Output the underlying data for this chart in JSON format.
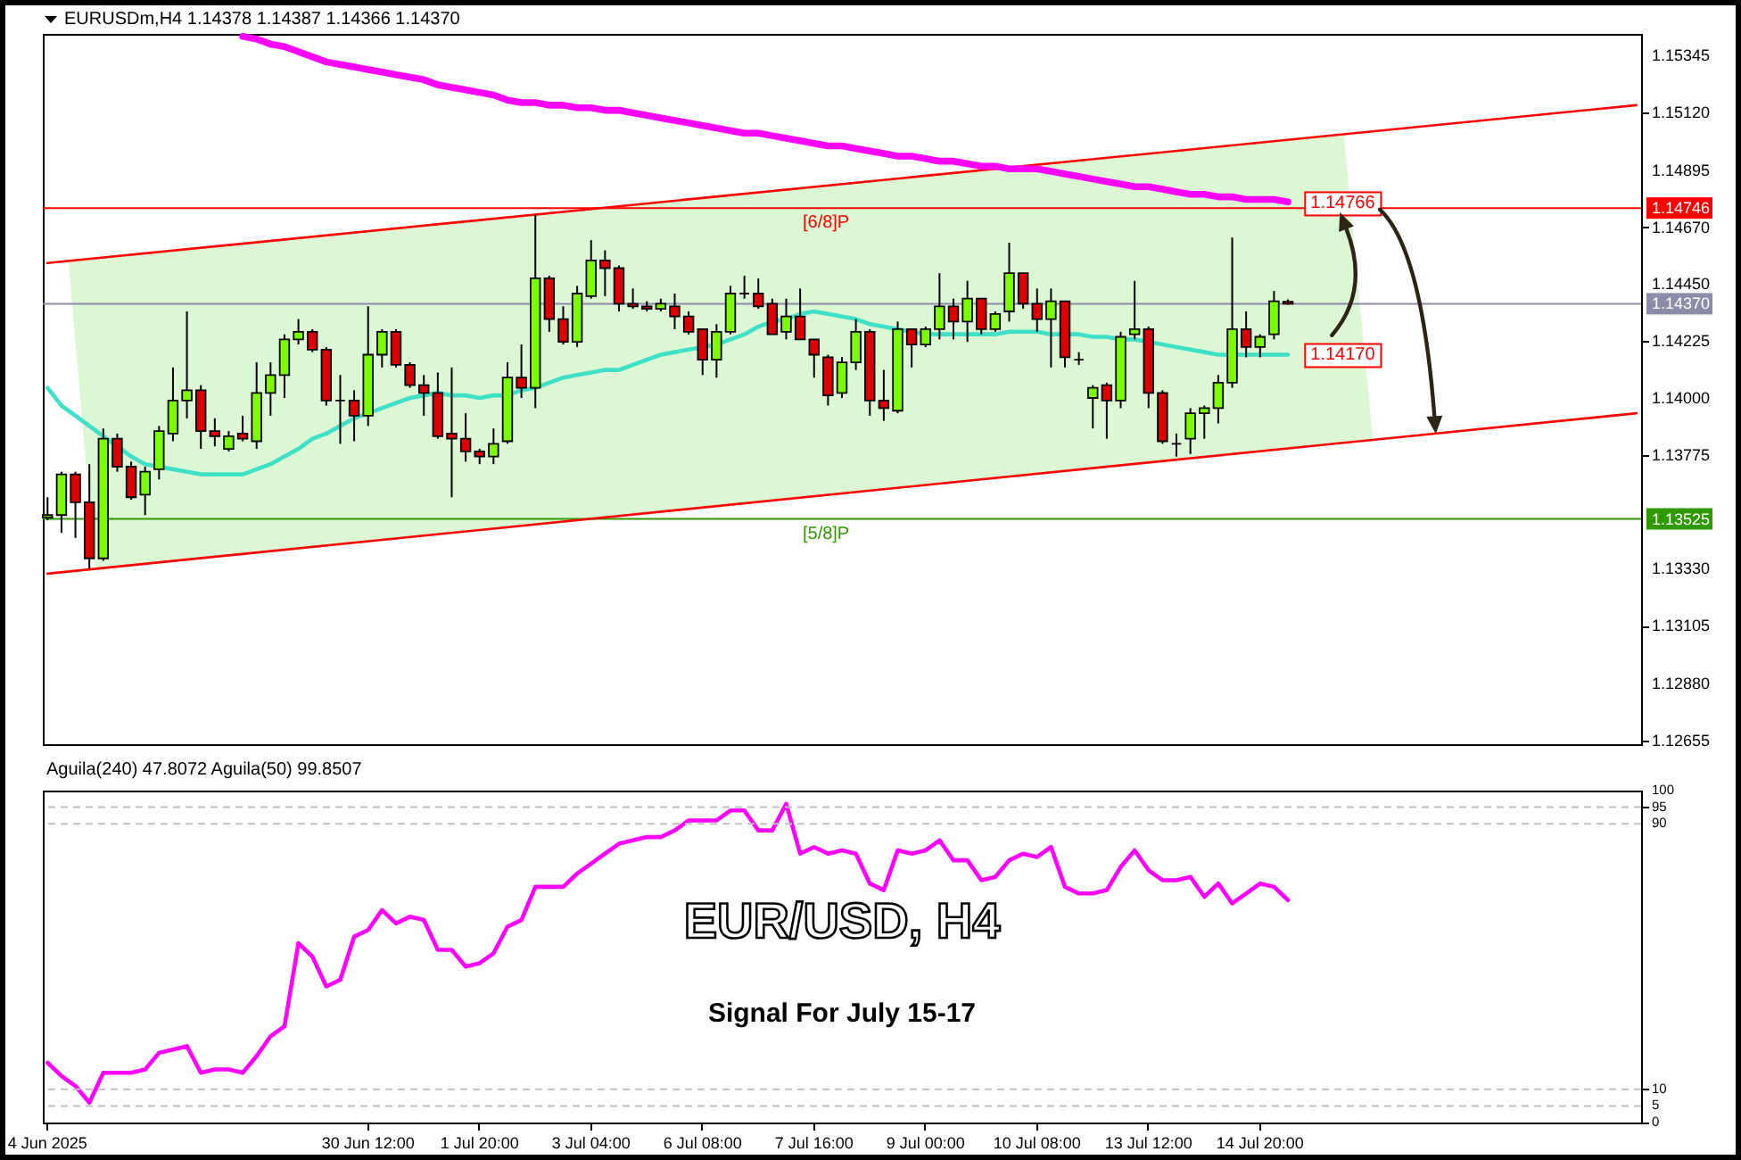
{
  "chart_data": [
    {
      "type": "candlestick",
      "title": "EURUSDm,H4 1.14378 1.14387 1.14366 1.14370",
      "categories": [
        null,
        null,
        null,
        null,
        null,
        null,
        null,
        null,
        null,
        null,
        null,
        null,
        null,
        null,
        null,
        null,
        null,
        null,
        null,
        null,
        null,
        null,
        null,
        null,
        null,
        null,
        null,
        null,
        null,
        null,
        null,
        null,
        null,
        null,
        null,
        null,
        null,
        null,
        null,
        null,
        null,
        null,
        null,
        null,
        null,
        null,
        null,
        null,
        null,
        null,
        null,
        null,
        null,
        null,
        null,
        null,
        null,
        null,
        null,
        null,
        null,
        null,
        null,
        null,
        null,
        null,
        null,
        null,
        null,
        null,
        null,
        null,
        null,
        null,
        null,
        null,
        null,
        null,
        null,
        null,
        null,
        null,
        null,
        null,
        null,
        null,
        null,
        null,
        null,
        null,
        null,
        null,
        null,
        null,
        null,
        null,
        null,
        null,
        null,
        null,
        null,
        null,
        null,
        null,
        null,
        null,
        null,
        null,
        null,
        null,
        null,
        null,
        null,
        null,
        null
      ],
      "ohlc": [
        [
          1.1353,
          1.1361,
          1.1352,
          1.1354
        ],
        [
          1.1354,
          1.1371,
          1.1347,
          1.137
        ],
        [
          1.137,
          1.1371,
          1.1345,
          1.1359
        ],
        [
          1.1359,
          1.1374,
          1.1333,
          1.1337
        ],
        [
          1.1337,
          1.1388,
          1.1336,
          1.1384
        ],
        [
          1.1384,
          1.1386,
          1.1371,
          1.1373
        ],
        [
          1.1373,
          1.1375,
          1.136,
          1.1361
        ],
        [
          1.1362,
          1.1373,
          1.1354,
          1.1371
        ],
        [
          1.1372,
          1.1389,
          1.1368,
          1.1387
        ],
        [
          1.1386,
          1.1412,
          1.1383,
          1.1399
        ],
        [
          1.1399,
          1.1434,
          1.1392,
          1.1403
        ],
        [
          1.1403,
          1.1405,
          1.138,
          1.1387
        ],
        [
          1.1387,
          1.1392,
          1.1381,
          1.1385
        ],
        [
          1.138,
          1.1387,
          1.1379,
          1.1385
        ],
        [
          1.1386,
          1.1393,
          1.1383,
          1.1384
        ],
        [
          1.1383,
          1.1414,
          1.138,
          1.1402
        ],
        [
          1.1402,
          1.1414,
          1.1393,
          1.1409
        ],
        [
          1.1409,
          1.1425,
          1.14,
          1.1423
        ],
        [
          1.1423,
          1.1431,
          1.1421,
          1.1426
        ],
        [
          1.1426,
          1.1427,
          1.1418,
          1.1419
        ],
        [
          1.1419,
          1.142,
          1.1397,
          1.1399
        ],
        [
          1.1399,
          1.1409,
          1.1382,
          1.1399
        ],
        [
          1.1399,
          1.1403,
          1.1383,
          1.1393
        ],
        [
          1.1393,
          1.1436,
          1.1389,
          1.1417
        ],
        [
          1.1417,
          1.1427,
          1.1412,
          1.1426
        ],
        [
          1.1426,
          1.1427,
          1.1412,
          1.1413
        ],
        [
          1.1413,
          1.1414,
          1.1404,
          1.1405
        ],
        [
          1.1405,
          1.1409,
          1.1393,
          1.1402
        ],
        [
          1.1402,
          1.141,
          1.1384,
          1.1385
        ],
        [
          1.1386,
          1.1412,
          1.1361,
          1.1384
        ],
        [
          1.1384,
          1.1394,
          1.1375,
          1.1379
        ],
        [
          1.1379,
          1.138,
          1.1374,
          1.1377
        ],
        [
          1.1377,
          1.1388,
          1.1374,
          1.1382
        ],
        [
          1.1383,
          1.1414,
          1.1382,
          1.1408
        ],
        [
          1.1408,
          1.1421,
          1.14,
          1.1404
        ],
        [
          1.1404,
          1.1472,
          1.1396,
          1.1447
        ],
        [
          1.1447,
          1.1448,
          1.1426,
          1.1431
        ],
        [
          1.1431,
          1.1436,
          1.1421,
          1.1422
        ],
        [
          1.1422,
          1.1444,
          1.142,
          1.1441
        ],
        [
          1.144,
          1.1462,
          1.1439,
          1.1454
        ],
        [
          1.1454,
          1.1458,
          1.144,
          1.1451
        ],
        [
          1.1451,
          1.1452,
          1.1434,
          1.1437
        ],
        [
          1.1437,
          1.1443,
          1.1435,
          1.1436
        ],
        [
          1.1436,
          1.1438,
          1.1434,
          1.1435
        ],
        [
          1.1435,
          1.1439,
          1.1434,
          1.1437
        ],
        [
          1.1436,
          1.1441,
          1.1427,
          1.1432
        ],
        [
          1.1432,
          1.1434,
          1.1425,
          1.1426
        ],
        [
          1.1427,
          1.1427,
          1.1409,
          1.1415
        ],
        [
          1.1415,
          1.1429,
          1.1408,
          1.1426
        ],
        [
          1.1426,
          1.1444,
          1.1425,
          1.1441
        ],
        [
          1.1441,
          1.1448,
          1.1439,
          1.1441
        ],
        [
          1.1441,
          1.1447,
          1.1435,
          1.1436
        ],
        [
          1.1437,
          1.1439,
          1.1425,
          1.1425
        ],
        [
          1.1426,
          1.1439,
          1.1423,
          1.1432
        ],
        [
          1.1432,
          1.1443,
          1.1423,
          1.1423
        ],
        [
          1.1423,
          1.1423,
          1.1408,
          1.1417
        ],
        [
          1.1416,
          1.1417,
          1.1397,
          1.1401
        ],
        [
          1.1402,
          1.1416,
          1.14,
          1.1414
        ],
        [
          1.1414,
          1.1431,
          1.1411,
          1.1426
        ],
        [
          1.1426,
          1.1427,
          1.1393,
          1.1399
        ],
        [
          1.1399,
          1.1411,
          1.1391,
          1.1396
        ],
        [
          1.1395,
          1.143,
          1.1394,
          1.1427
        ],
        [
          1.1427,
          1.1427,
          1.1412,
          1.1421
        ],
        [
          1.1421,
          1.1428,
          1.142,
          1.1427
        ],
        [
          1.1427,
          1.1449,
          1.1423,
          1.1436
        ],
        [
          1.1436,
          1.1439,
          1.1423,
          1.143
        ],
        [
          1.143,
          1.1446,
          1.1422,
          1.1439
        ],
        [
          1.1439,
          1.1439,
          1.1425,
          1.1427
        ],
        [
          1.1427,
          1.1434,
          1.1426,
          1.1433
        ],
        [
          1.1434,
          1.1461,
          1.143,
          1.1449
        ],
        [
          1.1449,
          1.1449,
          1.1435,
          1.1437
        ],
        [
          1.1437,
          1.1443,
          1.1426,
          1.1431
        ],
        [
          1.1431,
          1.1443,
          1.1412,
          1.1438
        ],
        [
          1.1438,
          1.1438,
          1.1412,
          1.1416
        ],
        [
          1.1415,
          1.1418,
          1.1413,
          1.1415
        ],
        [
          1.14,
          1.1405,
          1.1388,
          1.1404
        ],
        [
          1.1405,
          1.1406,
          1.1384,
          1.1399
        ],
        [
          1.1399,
          1.1426,
          1.1396,
          1.1424
        ],
        [
          1.1425,
          1.1446,
          1.1423,
          1.1427
        ],
        [
          1.1427,
          1.1428,
          1.1396,
          1.1402
        ],
        [
          1.1402,
          1.1403,
          1.1382,
          1.1383
        ],
        [
          1.1382,
          1.1386,
          1.1377,
          1.1382
        ],
        [
          1.1384,
          1.1396,
          1.1378,
          1.1394
        ],
        [
          1.1394,
          1.1397,
          1.1384,
          1.1396
        ],
        [
          1.1396,
          1.1409,
          1.139,
          1.1406
        ],
        [
          1.1406,
          1.1463,
          1.1404,
          1.1427
        ],
        [
          1.1427,
          1.1434,
          1.1416,
          1.142
        ],
        [
          1.142,
          1.1425,
          1.1416,
          1.1424
        ],
        [
          1.1425,
          1.1442,
          1.1423,
          1.1438
        ],
        [
          1.14378,
          1.14387,
          1.14366,
          1.1437
        ],
        null,
        null,
        null,
        null,
        null,
        null,
        null,
        null,
        null,
        null,
        null,
        null,
        null,
        null,
        null,
        null,
        null,
        null,
        null,
        null,
        null,
        null,
        null,
        null,
        null
      ],
      "colors": [
        "#7cfc00",
        "#7cfc00",
        "#dd0000",
        "#dd0000",
        "#7cfc00",
        "#dd0000",
        "#dd0000",
        "#7cfc00",
        "#7cfc00",
        "#7cfc00",
        "#7cfc00",
        "#dd0000",
        "#dd0000",
        "#7cfc00",
        "#dd0000",
        "#7cfc00",
        "#7cfc00",
        "#7cfc00",
        "#7cfc00",
        "#dd0000",
        "#dd0000",
        "#000000",
        "#dd0000",
        "#7cfc00",
        "#7cfc00",
        "#dd0000",
        "#dd0000",
        "#dd0000",
        "#dd0000",
        "#dd0000",
        "#dd0000",
        "#dd0000",
        "#7cfc00",
        "#7cfc00",
        "#dd0000",
        "#7cfc00",
        "#dd0000",
        "#dd0000",
        "#7cfc00",
        "#7cfc00",
        "#dd0000",
        "#dd0000",
        "#dd0000",
        "#dd0000",
        "#7cfc00",
        "#dd0000",
        "#dd0000",
        "#dd0000",
        "#7cfc00",
        "#7cfc00",
        "#000000",
        "#dd0000",
        "#dd0000",
        "#7cfc00",
        "#dd0000",
        "#dd0000",
        "#dd0000",
        "#7cfc00",
        "#7cfc00",
        "#dd0000",
        "#dd0000",
        "#7cfc00",
        "#dd0000",
        "#7cfc00",
        "#7cfc00",
        "#dd0000",
        "#7cfc00",
        "#dd0000",
        "#7cfc00",
        "#7cfc00",
        "#dd0000",
        "#dd0000",
        "#7cfc00",
        "#dd0000",
        "#000000",
        "#7cfc00",
        "#dd0000",
        "#7cfc00",
        "#7cfc00",
        "#dd0000",
        "#dd0000",
        "#000000",
        "#7cfc00",
        "#7cfc00",
        "#7cfc00",
        "#7cfc00",
        "#dd0000",
        "#7cfc00",
        "#7cfc00",
        "#dd0000",
        null,
        null,
        null,
        null,
        null,
        null,
        null,
        null,
        null,
        null,
        null,
        null,
        null,
        null,
        null,
        null,
        null,
        null,
        null,
        null,
        null,
        null,
        null,
        null,
        null
      ],
      "series": [
        {
          "type": "line",
          "color": "#ff0000",
          "values": [
            1.1453,
            null,
            null,
            null,
            null,
            null,
            null,
            null,
            null,
            null,
            null,
            null,
            null,
            null,
            null,
            null,
            null,
            null,
            null,
            null,
            null,
            null,
            null,
            null,
            null,
            null,
            null,
            null,
            null,
            null,
            null,
            null,
            null,
            null,
            null,
            null,
            null,
            null,
            null,
            null,
            null,
            null,
            null,
            null,
            null,
            null,
            null,
            null,
            null,
            null,
            null,
            null,
            null,
            null,
            null,
            null,
            null,
            null,
            null,
            null,
            null,
            null,
            null,
            null,
            null,
            null,
            null,
            null,
            null,
            null,
            null,
            null,
            null,
            null,
            null,
            null,
            null,
            null,
            null,
            null,
            null,
            null,
            null,
            null,
            null,
            null,
            null,
            null,
            null,
            null,
            null,
            null,
            null,
            null,
            null,
            null,
            null,
            null,
            null,
            null,
            null,
            null,
            null,
            null,
            null,
            null,
            null,
            null,
            null,
            null,
            null,
            null,
            null,
            null,
            1.1515
          ]
        },
        {
          "type": "line",
          "color": "#ff0000",
          "values": [
            1.1331,
            null,
            null,
            null,
            null,
            null,
            null,
            null,
            null,
            null,
            null,
            null,
            null,
            null,
            null,
            null,
            null,
            null,
            null,
            null,
            null,
            null,
            null,
            null,
            null,
            null,
            null,
            null,
            null,
            null,
            null,
            null,
            null,
            null,
            null,
            null,
            null,
            null,
            null,
            null,
            null,
            null,
            null,
            null,
            null,
            null,
            null,
            null,
            null,
            null,
            null,
            null,
            null,
            null,
            null,
            null,
            null,
            null,
            null,
            null,
            null,
            null,
            null,
            null,
            null,
            null,
            null,
            null,
            null,
            null,
            null,
            null,
            null,
            null,
            null,
            null,
            null,
            null,
            null,
            null,
            null,
            null,
            null,
            null,
            null,
            null,
            null,
            null,
            null,
            null,
            null,
            null,
            null,
            null,
            null,
            null,
            null,
            null,
            null,
            null,
            null,
            null,
            null,
            null,
            null,
            null,
            null,
            null,
            null,
            null,
            null,
            null,
            null,
            null,
            1.1394
          ]
        },
        {
          "type": "line",
          "color": "#ff00ff",
          "values": [
            null,
            null,
            null,
            null,
            null,
            null,
            null,
            null,
            null,
            null,
            null,
            null,
            null,
            null,
            1.1542,
            1.1541,
            1.1539,
            1.1538,
            1.1536,
            1.1534,
            1.1532,
            1.1531,
            1.153,
            1.1529,
            1.1528,
            1.1527,
            1.1526,
            1.1525,
            1.1523,
            1.1522,
            1.1521,
            1.152,
            1.1519,
            1.1517,
            1.1516,
            1.1516,
            1.1515,
            1.1515,
            1.1514,
            1.1514,
            1.1513,
            1.1513,
            1.1512,
            1.1511,
            1.151,
            1.1509,
            1.1508,
            1.1507,
            1.1506,
            1.1505,
            1.1504,
            1.1504,
            1.1503,
            1.1502,
            1.1501,
            1.15,
            1.1499,
            1.1499,
            1.1498,
            1.1497,
            1.1496,
            1.1495,
            1.1495,
            1.1494,
            1.1493,
            1.1493,
            1.1492,
            1.1491,
            1.1491,
            1.149,
            1.149,
            1.149,
            1.1489,
            1.1488,
            1.1487,
            1.1486,
            1.1485,
            1.1484,
            1.1483,
            1.1483,
            1.1482,
            1.1481,
            1.148,
            1.148,
            1.1479,
            1.1479,
            1.1478,
            1.1478,
            1.1478,
            1.1477,
            null,
            null,
            null,
            null,
            null,
            null,
            null,
            null,
            null,
            null,
            null,
            null,
            null,
            null,
            null,
            null,
            null,
            null,
            null,
            null,
            null,
            null,
            null,
            null,
            null
          ]
        },
        {
          "type": "line",
          "color": "#3fe0c8",
          "values": [
            1.1404,
            1.1397,
            1.1393,
            1.1389,
            1.1385,
            1.1381,
            1.1377,
            1.1374,
            1.1373,
            1.1372,
            1.1371,
            1.137,
            1.137,
            1.137,
            1.137,
            1.1372,
            1.1374,
            1.1377,
            1.138,
            1.1384,
            1.1386,
            1.1389,
            1.1392,
            1.1394,
            1.1396,
            1.1398,
            1.14,
            1.1401,
            1.1402,
            1.1401,
            1.1401,
            1.14,
            1.1401,
            1.1401,
            1.1403,
            1.1404,
            1.1406,
            1.1408,
            1.1409,
            1.141,
            1.1411,
            1.1411,
            1.1413,
            1.1415,
            1.1417,
            1.1418,
            1.1419,
            1.142,
            1.1421,
            1.1423,
            1.1425,
            1.1428,
            1.143,
            1.1431,
            1.1433,
            1.1434,
            1.1433,
            1.1432,
            1.1431,
            1.1429,
            1.1428,
            1.1427,
            1.1426,
            1.1425,
            1.1425,
            1.1425,
            1.1425,
            1.1425,
            1.1425,
            1.1426,
            1.1426,
            1.1426,
            1.1425,
            1.1425,
            1.1425,
            1.1424,
            1.1424,
            1.1423,
            1.1423,
            1.1422,
            1.1421,
            1.142,
            1.1419,
            1.1418,
            1.1417,
            1.1417,
            1.1417,
            1.1417,
            1.1417,
            1.1417,
            null,
            null,
            null,
            null,
            null,
            null,
            null,
            null,
            null,
            null,
            null,
            null,
            null,
            null,
            null,
            null,
            null,
            null,
            null,
            null,
            null,
            null,
            null,
            null,
            null
          ]
        }
      ],
      "ylim": [
        1.1264,
        1.1543
      ],
      "yticks": [
        1.15345,
        {
          "value": 1.1512,
          "label": "1.15120"
        },
        1.14895,
        {
          "value": 1.1467,
          "label": "1.14670"
        },
        {
          "value": 1.1445,
          "label": "1.14450"
        },
        1.14225,
        {
          "value": 1.14,
          "label": "1.14000"
        },
        1.13775,
        {
          "value": 1.1333,
          "label": "1.13330"
        },
        1.13105,
        {
          "value": 1.1288,
          "label": "1.12880"
        },
        1.12655
      ],
      "tick_labels": "y",
      "ref_lines": [
        {
          "axis": "y",
          "value": 1.14746,
          "label": "[6/8]P",
          "color": "#ff0000"
        },
        {
          "axis": "y",
          "value": 1.1437,
          "color": "#8c8ca8"
        },
        {
          "axis": "y",
          "value": 1.13525,
          "label": "[5/8]P",
          "color": "#2f9a00"
        }
      ],
      "annotations": [
        {
          "text": "1.14746",
          "y": 1.14746
        },
        {
          "text": "1.14370",
          "y": 1.1437
        },
        {
          "text": "1.13525",
          "y": 1.13525
        },
        {
          "text": "1.14766",
          "y": 1.14766
        },
        {
          "text": "1.14170",
          "y": 1.1417
        }
      ]
    },
    {
      "type": "line",
      "title": "Aguila(240) 47.8072  Aguila(50) 99.8507",
      "categories": [
        "4 Jun 2025",
        null,
        null,
        null,
        null,
        null,
        null,
        null,
        null,
        null,
        null,
        null,
        null,
        null,
        null,
        null,
        null,
        null,
        null,
        null,
        null,
        null,
        null,
        "30 Jun 12:00",
        null,
        null,
        null,
        null,
        null,
        null,
        null,
        "1 Jul 20:00",
        null,
        null,
        null,
        null,
        null,
        null,
        null,
        "3 Jul 04:00",
        null,
        null,
        null,
        null,
        null,
        null,
        null,
        "6 Jul 08:00",
        null,
        null,
        null,
        null,
        null,
        null,
        null,
        "7 Jul 16:00",
        null,
        null,
        null,
        null,
        null,
        null,
        null,
        "9 Jul 00:00",
        null,
        null,
        null,
        null,
        null,
        null,
        null,
        "10 Jul 08:00",
        null,
        null,
        null,
        null,
        null,
        null,
        null,
        "13 Jul 12:00",
        null,
        null,
        null,
        null,
        null,
        null,
        null,
        "14 Jul 20:00",
        null,
        null,
        null,
        null,
        null,
        null,
        null,
        null,
        null,
        null,
        null,
        null,
        null,
        null,
        null,
        null,
        null,
        null,
        null,
        null,
        null,
        null,
        null,
        null,
        null,
        null,
        null
      ],
      "series": [
        {
          "type": "line",
          "color": "#ff00ff",
          "values": [
            18,
            14,
            11,
            6,
            15,
            15,
            15,
            16,
            21,
            22,
            23,
            15,
            16,
            16,
            15,
            20,
            26,
            29,
            54,
            50,
            41,
            43,
            56,
            58,
            64,
            60,
            62,
            61,
            52,
            52,
            47,
            48,
            51,
            59,
            61,
            71,
            71,
            71,
            75,
            78,
            81,
            84,
            85,
            86,
            86,
            88,
            91,
            91,
            91,
            94,
            94,
            88,
            88,
            96,
            81,
            83,
            81,
            82,
            81,
            72,
            70,
            82,
            81,
            82,
            85,
            79,
            79,
            73,
            74,
            79,
            81,
            80,
            83,
            71,
            69,
            69,
            70,
            77,
            82,
            76,
            73,
            73,
            74,
            68,
            72,
            66,
            69,
            72,
            71,
            67,
            null,
            null,
            null,
            null,
            null,
            null,
            null,
            null,
            null,
            null,
            null,
            null,
            null,
            null,
            null,
            null,
            null,
            null,
            null,
            null,
            null,
            null,
            null,
            null,
            null
          ]
        }
      ],
      "ylim": [
        0,
        100
      ],
      "yticks": [
        0,
        5,
        10,
        90,
        95,
        100
      ],
      "ref_lines": [
        {
          "axis": "y",
          "value": 95,
          "color": "#c0c0c0",
          "line_style": "dashed"
        },
        {
          "axis": "y",
          "value": 90,
          "color": "#c0c0c0",
          "line_style": "dashed"
        },
        {
          "axis": "y",
          "value": 10,
          "color": "#c0c0c0",
          "line_style": "dashed"
        },
        {
          "axis": "y",
          "value": 5,
          "color": "#c0c0c0",
          "line_style": "dashed"
        }
      ],
      "annotations": [
        "EUR/USD, H4",
        "Signal For July 15-17"
      ]
    }
  ]
}
